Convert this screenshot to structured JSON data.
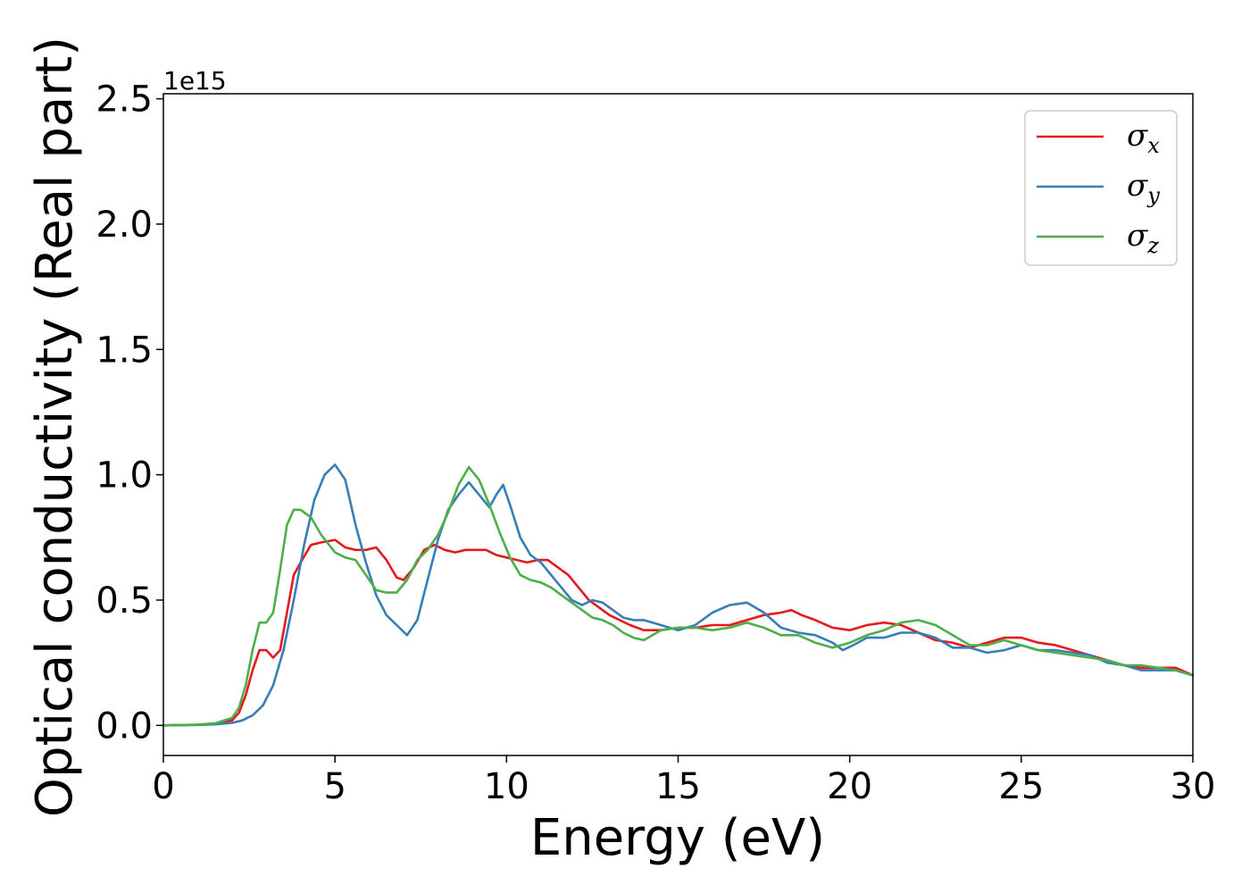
{
  "chart_data": {
    "type": "line",
    "title": "",
    "xlabel": "Energy (eV)",
    "ylabel": "Optical conductivity (Real part)",
    "y_offset_text": "1e15",
    "xlim": [
      0,
      30
    ],
    "ylim": [
      -0.12,
      2.52
    ],
    "x_ticks": [
      0,
      5,
      10,
      15,
      20,
      25,
      30
    ],
    "x_tick_labels": [
      "0",
      "5",
      "10",
      "15",
      "20",
      "25",
      "30"
    ],
    "y_ticks": [
      0.0,
      0.5,
      1.0,
      1.5,
      2.0,
      2.5
    ],
    "y_tick_labels": [
      "0.0",
      "0.5",
      "1.0",
      "1.5",
      "2.0",
      "2.5"
    ],
    "grid": false,
    "legend_position": "top-right",
    "series": [
      {
        "name": "σ",
        "subscript": "x",
        "color": "#e41a1c",
        "x": [
          0,
          1,
          1.5,
          2,
          2.2,
          2.4,
          2.6,
          2.8,
          3.0,
          3.2,
          3.4,
          3.6,
          3.8,
          4.0,
          4.3,
          4.6,
          5.0,
          5.3,
          5.6,
          5.9,
          6.2,
          6.5,
          6.8,
          7.0,
          7.3,
          7.6,
          7.9,
          8.2,
          8.5,
          8.8,
          9.1,
          9.4,
          9.7,
          10.0,
          10.3,
          10.6,
          10.9,
          11.2,
          11.5,
          11.8,
          12.1,
          12.4,
          12.7,
          13.0,
          13.3,
          13.6,
          14.0,
          14.5,
          15.0,
          15.5,
          16.0,
          16.5,
          17.0,
          17.5,
          18.0,
          18.3,
          18.6,
          19.0,
          19.5,
          20.0,
          20.5,
          21.0,
          21.5,
          22.0,
          22.5,
          23.0,
          23.5,
          24.0,
          24.5,
          25.0,
          25.5,
          26.0,
          26.5,
          27.0,
          27.5,
          28.0,
          28.5,
          29.0,
          29.5,
          30.0
        ],
        "y": [
          0.0,
          0.003,
          0.008,
          0.02,
          0.05,
          0.12,
          0.22,
          0.3,
          0.3,
          0.27,
          0.3,
          0.45,
          0.6,
          0.65,
          0.72,
          0.73,
          0.74,
          0.71,
          0.7,
          0.7,
          0.71,
          0.66,
          0.59,
          0.58,
          0.63,
          0.7,
          0.72,
          0.7,
          0.69,
          0.7,
          0.7,
          0.7,
          0.68,
          0.67,
          0.66,
          0.65,
          0.66,
          0.66,
          0.63,
          0.6,
          0.55,
          0.5,
          0.47,
          0.44,
          0.42,
          0.4,
          0.38,
          0.38,
          0.39,
          0.39,
          0.4,
          0.4,
          0.42,
          0.44,
          0.45,
          0.46,
          0.44,
          0.42,
          0.39,
          0.38,
          0.4,
          0.41,
          0.4,
          0.37,
          0.34,
          0.33,
          0.31,
          0.33,
          0.35,
          0.35,
          0.33,
          0.32,
          0.3,
          0.28,
          0.26,
          0.24,
          0.23,
          0.23,
          0.23,
          0.2
        ]
      },
      {
        "name": "σ",
        "subscript": "y",
        "color": "#377eb8",
        "x": [
          0,
          1,
          1.5,
          2,
          2.3,
          2.6,
          2.9,
          3.2,
          3.5,
          3.8,
          4.1,
          4.4,
          4.7,
          5.0,
          5.3,
          5.6,
          5.9,
          6.2,
          6.5,
          6.8,
          7.1,
          7.4,
          7.7,
          8.0,
          8.3,
          8.6,
          8.9,
          9.2,
          9.5,
          9.7,
          9.9,
          10.1,
          10.4,
          10.7,
          11.0,
          11.3,
          11.6,
          11.9,
          12.2,
          12.5,
          12.8,
          13.1,
          13.4,
          13.7,
          14.0,
          14.5,
          15.0,
          15.5,
          16.0,
          16.5,
          17.0,
          17.5,
          18.0,
          18.5,
          19.0,
          19.5,
          19.8,
          20.1,
          20.5,
          21.0,
          21.5,
          22.0,
          22.5,
          23.0,
          23.5,
          24.0,
          24.5,
          25.0,
          25.5,
          26.0,
          26.5,
          27.0,
          27.5,
          28.0,
          28.5,
          29.0,
          29.5,
          30.0
        ],
        "y": [
          0.0,
          0.002,
          0.004,
          0.01,
          0.02,
          0.04,
          0.08,
          0.16,
          0.3,
          0.5,
          0.72,
          0.9,
          1.0,
          1.04,
          0.98,
          0.8,
          0.65,
          0.52,
          0.44,
          0.4,
          0.36,
          0.42,
          0.58,
          0.74,
          0.86,
          0.92,
          0.97,
          0.92,
          0.87,
          0.92,
          0.96,
          0.88,
          0.75,
          0.68,
          0.65,
          0.6,
          0.55,
          0.5,
          0.48,
          0.5,
          0.49,
          0.46,
          0.43,
          0.42,
          0.42,
          0.4,
          0.38,
          0.4,
          0.45,
          0.48,
          0.49,
          0.45,
          0.39,
          0.37,
          0.36,
          0.33,
          0.3,
          0.32,
          0.35,
          0.35,
          0.37,
          0.37,
          0.35,
          0.31,
          0.31,
          0.29,
          0.3,
          0.32,
          0.3,
          0.3,
          0.29,
          0.28,
          0.25,
          0.24,
          0.22,
          0.22,
          0.22,
          0.2
        ]
      },
      {
        "name": "σ",
        "subscript": "z",
        "color": "#4daf4a",
        "x": [
          0,
          1,
          1.5,
          2,
          2.2,
          2.4,
          2.6,
          2.8,
          3.0,
          3.2,
          3.4,
          3.6,
          3.8,
          4.0,
          4.3,
          4.6,
          5.0,
          5.3,
          5.6,
          5.9,
          6.2,
          6.5,
          6.8,
          7.1,
          7.4,
          7.7,
          8.0,
          8.3,
          8.6,
          8.9,
          9.2,
          9.5,
          9.8,
          10.1,
          10.4,
          10.7,
          11.0,
          11.3,
          11.6,
          11.9,
          12.2,
          12.5,
          12.8,
          13.1,
          13.4,
          13.7,
          14.0,
          14.5,
          15.0,
          15.5,
          16.0,
          16.5,
          17.0,
          17.5,
          18.0,
          18.5,
          19.0,
          19.5,
          20.0,
          20.5,
          21.0,
          21.5,
          22.0,
          22.5,
          23.0,
          23.5,
          24.0,
          24.5,
          25.0,
          25.5,
          26.0,
          26.5,
          27.0,
          27.5,
          28.0,
          28.5,
          29.0,
          29.5,
          30.0
        ],
        "y": [
          0.0,
          0.003,
          0.008,
          0.03,
          0.07,
          0.16,
          0.3,
          0.41,
          0.41,
          0.45,
          0.62,
          0.8,
          0.86,
          0.86,
          0.83,
          0.76,
          0.69,
          0.67,
          0.66,
          0.6,
          0.54,
          0.53,
          0.53,
          0.58,
          0.66,
          0.7,
          0.76,
          0.85,
          0.96,
          1.03,
          0.98,
          0.88,
          0.77,
          0.67,
          0.6,
          0.58,
          0.57,
          0.55,
          0.52,
          0.49,
          0.46,
          0.43,
          0.42,
          0.4,
          0.37,
          0.35,
          0.34,
          0.38,
          0.39,
          0.39,
          0.38,
          0.39,
          0.41,
          0.39,
          0.36,
          0.36,
          0.33,
          0.31,
          0.33,
          0.36,
          0.38,
          0.41,
          0.42,
          0.4,
          0.36,
          0.32,
          0.32,
          0.34,
          0.32,
          0.3,
          0.29,
          0.28,
          0.27,
          0.26,
          0.24,
          0.24,
          0.23,
          0.22,
          0.2
        ]
      }
    ]
  }
}
